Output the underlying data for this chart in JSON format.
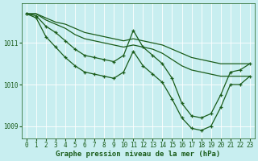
{
  "bg_color": "#c8eef0",
  "grid_color": "#ffffff",
  "line_color": "#1a5c1a",
  "marker_color": "#1a5c1a",
  "xlabel": "Graphe pression niveau de la mer (hPa)",
  "ylim": [
    1008.7,
    1011.95
  ],
  "xlim": [
    -0.5,
    23.5
  ],
  "yticks": [
    1009,
    1010,
    1011
  ],
  "xticks": [
    0,
    1,
    2,
    3,
    4,
    5,
    6,
    7,
    8,
    9,
    10,
    11,
    12,
    13,
    14,
    15,
    16,
    17,
    18,
    19,
    20,
    21,
    22,
    23
  ],
  "series": [
    {
      "y": [
        1011.7,
        1011.7,
        1011.6,
        1011.5,
        1011.45,
        1011.35,
        1011.25,
        1011.2,
        1011.15,
        1011.1,
        1011.05,
        1011.1,
        1011.05,
        1011.0,
        1010.95,
        1010.85,
        1010.75,
        1010.65,
        1010.6,
        1010.55,
        1010.5,
        1010.5,
        1010.5,
        1010.5
      ],
      "marker": false,
      "lw": 0.9
    },
    {
      "y": [
        1011.7,
        1011.7,
        1011.55,
        1011.45,
        1011.35,
        1011.2,
        1011.1,
        1011.05,
        1011.0,
        1010.95,
        1010.9,
        1010.95,
        1010.9,
        1010.85,
        1010.75,
        1010.6,
        1010.45,
        1010.35,
        1010.3,
        1010.25,
        1010.2,
        1010.2,
        1010.2,
        1010.2
      ],
      "marker": false,
      "lw": 0.9
    },
    {
      "y": [
        1011.7,
        1011.65,
        1011.4,
        1011.25,
        1011.05,
        1010.85,
        1010.7,
        1010.65,
        1010.6,
        1010.55,
        1010.7,
        1011.3,
        1010.9,
        1010.7,
        1010.5,
        1010.15,
        1009.55,
        1009.25,
        1009.2,
        1009.3,
        1009.75,
        1010.3,
        1010.35,
        1010.5
      ],
      "marker": true,
      "lw": 0.9
    },
    {
      "y": [
        1011.7,
        1011.6,
        1011.15,
        1010.9,
        1010.65,
        1010.45,
        1010.3,
        1010.25,
        1010.2,
        1010.15,
        1010.3,
        1010.8,
        1010.45,
        1010.25,
        1010.05,
        1009.65,
        1009.2,
        1008.95,
        1008.9,
        1009.0,
        1009.45,
        1010.0,
        1010.0,
        1010.2
      ],
      "marker": true,
      "lw": 0.9
    }
  ],
  "xlabel_fontsize": 6.5,
  "tick_fontsize": 5.5
}
